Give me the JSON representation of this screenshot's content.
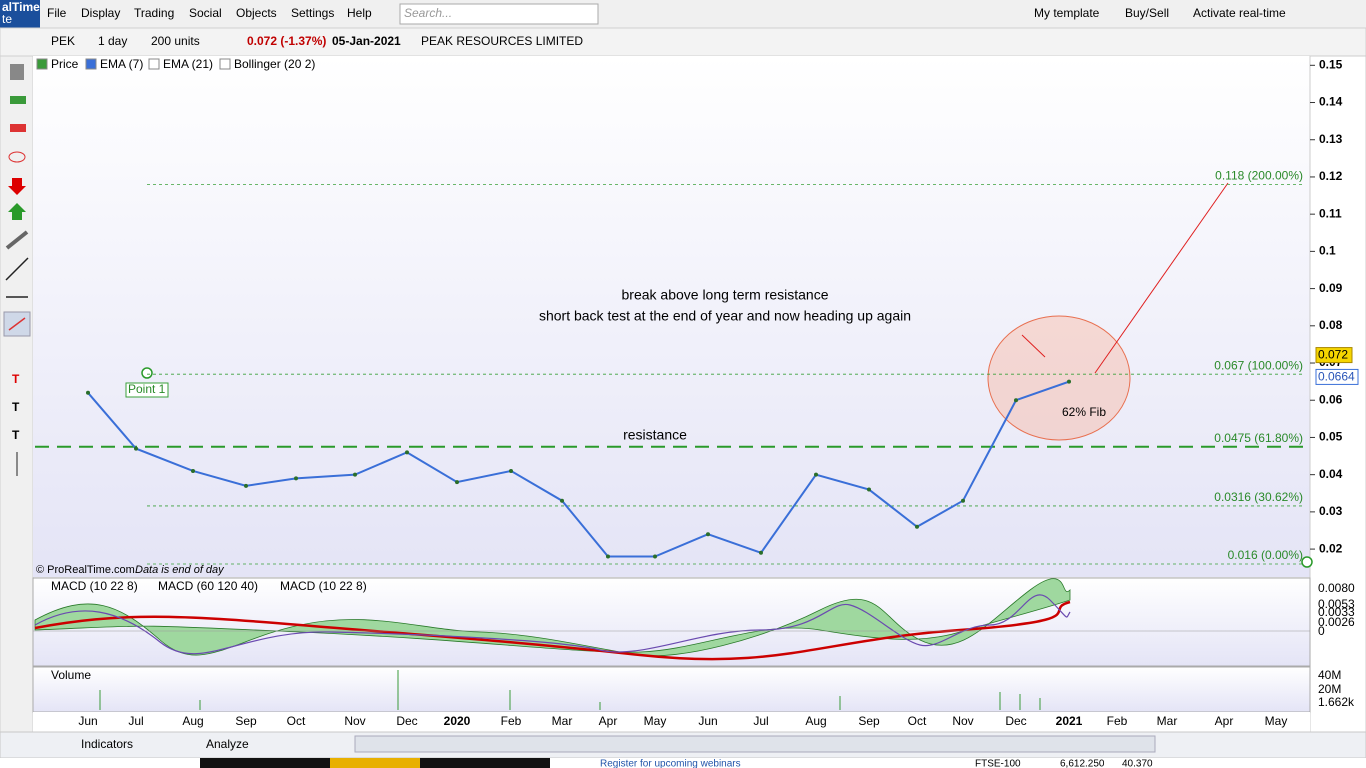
{
  "app": {
    "logo": [
      "alTime",
      "te"
    ],
    "menu": [
      "File",
      "Display",
      "Trading",
      "Social",
      "Objects",
      "Settings",
      "Help"
    ],
    "search_placeholder": "Search...",
    "right_menu": [
      "My template",
      "Buy/Sell",
      "Activate real-time"
    ],
    "toolbar": {
      "symbol": "PEK",
      "period": "1 day",
      "units": "200 units",
      "quote": "0.072 (-1.37%)",
      "date": "05-Jan-2021",
      "instrument": "PEAK RESOURCES LIMITED"
    },
    "price_legend": [
      "Price",
      "EMA (7)",
      "EMA (21)",
      "Bollinger (20 2)"
    ],
    "copyright": "© ProRealTime.com",
    "data_note": "Data is end of day",
    "macd_legend": [
      "MACD (10 22 8)",
      "MACD (60 120 40)",
      "MACD (10 22 8)"
    ],
    "macd_axis": [
      "0.0080",
      "0.0053",
      "0.0033",
      "0.0026",
      "0"
    ],
    "volume_legend": "Volume",
    "volume_axis": [
      "40M",
      "20M",
      "1.662k"
    ],
    "bottom": [
      "Indicators",
      "Analyze"
    ],
    "taskbar": [
      "FTSE-100",
      "6,612.250",
      "40.370",
      "Register for upcoming webinars"
    ]
  },
  "chart_data": {
    "type": "line",
    "categories": [
      "Jun",
      "Jul",
      "Aug",
      "Sep",
      "Oct",
      "Nov",
      "Dec",
      "2020",
      "Feb",
      "Mar",
      "Apr",
      "May",
      "Jun",
      "Jul",
      "Aug",
      "Sep",
      "Oct",
      "Nov",
      "Dec",
      "2021",
      "Feb",
      "Mar",
      "Apr",
      "May"
    ],
    "series": [
      {
        "name": "Price",
        "color": "#3a6fd8",
        "values": [
          0.062,
          0.047,
          0.041,
          0.037,
          0.039,
          0.04,
          0.046,
          0.038,
          0.041,
          0.033,
          0.018,
          0.018,
          0.024,
          0.019,
          0.04,
          0.036,
          0.026,
          0.033,
          0.06,
          0.065,
          null,
          null,
          null,
          null
        ]
      }
    ],
    "ylim": [
      0.0125,
      0.1525
    ],
    "yticks": [
      0.15,
      0.14,
      0.13,
      0.12,
      0.11,
      0.1,
      0.09,
      0.08,
      0.07,
      0.06,
      0.05,
      0.04,
      0.03,
      0.02
    ],
    "last_price": {
      "value": 0.072,
      "label": "0.072"
    },
    "ema_price": {
      "value": 0.0664,
      "label": "0.0664"
    },
    "fib_levels": [
      {
        "value": 0.118,
        "label": "0.118 (200.00%)"
      },
      {
        "value": 0.067,
        "label": "0.067 (100.00%)"
      },
      {
        "value": 0.0475,
        "label": "0.0475 (61.80%)"
      },
      {
        "value": 0.0316,
        "label": "0.0316 (30.62%)"
      },
      {
        "value": 0.016,
        "label": "0.016 (0.00%)"
      }
    ],
    "annotations": [
      "break above long term resistance",
      "short back test at the end of year and now heading up again",
      "resistance",
      "Point 1",
      "62% Fib"
    ]
  }
}
